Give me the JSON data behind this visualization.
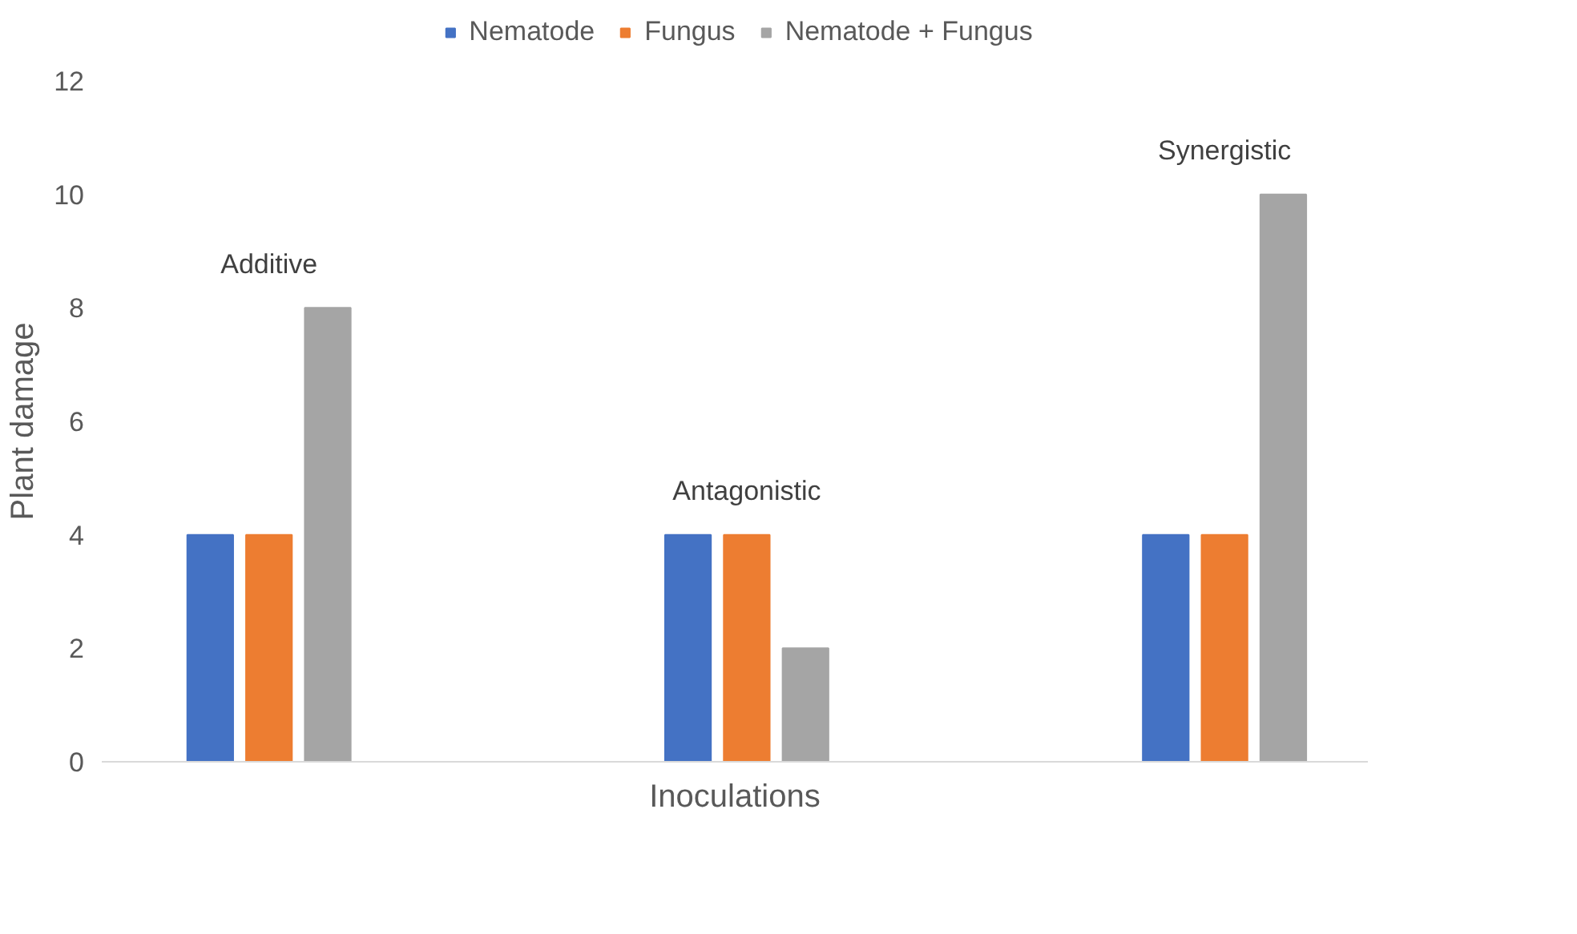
{
  "chart_data": {
    "type": "bar",
    "xlabel": "Inoculations",
    "ylabel": "Plant damage",
    "categories": [
      null,
      null,
      null
    ],
    "series": [
      {
        "name": "Nematode",
        "color": "#4472c4",
        "values": [
          4,
          4,
          4
        ]
      },
      {
        "name": "Fungus",
        "color": "#ed7d31",
        "values": [
          4,
          4,
          4
        ]
      },
      {
        "name": "Nematode + Fungus",
        "color": "#a5a5a5",
        "values": [
          8,
          2,
          10
        ]
      }
    ],
    "annotations": [
      "Additive",
      "Antagonistic",
      "Synergistic"
    ],
    "ylim": [
      0,
      12
    ],
    "yticks": [
      0,
      2,
      4,
      6,
      8,
      10,
      12
    ],
    "grid": false,
    "legend": "top"
  }
}
